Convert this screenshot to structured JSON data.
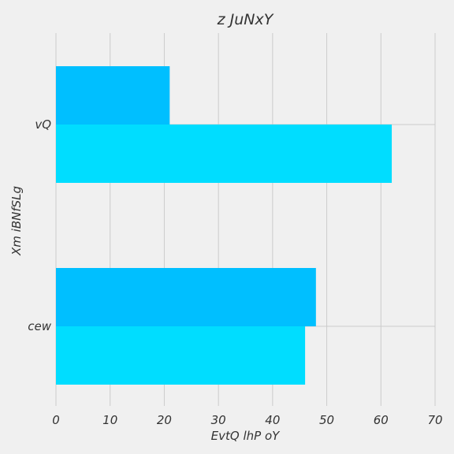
{
  "chart_data": {
    "type": "bar",
    "orientation": "horizontal",
    "title": "z JuNxY",
    "xlabel": "EvtQ lhP  oY",
    "ylabel": "Xm iBNfSLg",
    "categories": [
      "cew",
      "vQ"
    ],
    "series": [
      {
        "values": [
          46,
          62
        ],
        "color": "#00DDFF"
      },
      {
        "values": [
          48,
          21
        ],
        "color": "#00BFFF"
      }
    ],
    "xlim": [
      0,
      70
    ],
    "xticks": [
      0,
      10,
      20,
      30,
      40,
      50,
      60,
      70
    ],
    "grid": true,
    "legend": "none",
    "colors": {
      "background": "#f0f0f0",
      "grid": "#cbcbcb",
      "text": "#333333"
    }
  }
}
